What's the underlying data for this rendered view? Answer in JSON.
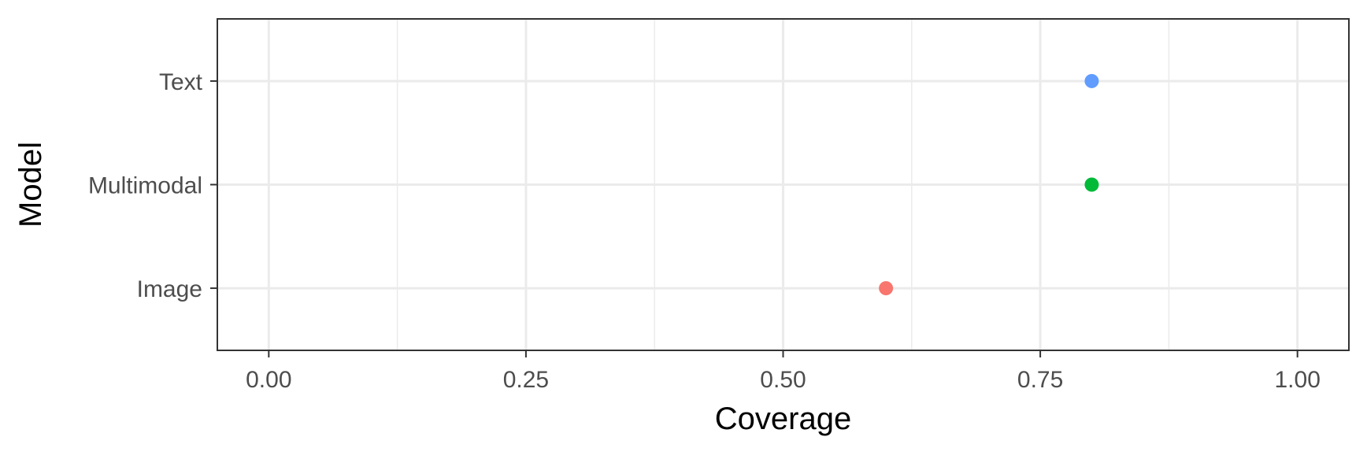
{
  "chart_data": {
    "type": "scatter",
    "title": "",
    "xlabel": "Coverage",
    "ylabel": "Model",
    "xlim": [
      -0.05,
      1.05
    ],
    "x_ticks": [
      "0.00",
      "0.25",
      "0.50",
      "0.75",
      "1.00"
    ],
    "x_tick_values": [
      0.0,
      0.25,
      0.5,
      0.75,
      1.0
    ],
    "categories": [
      "Image",
      "Multimodal",
      "Text"
    ],
    "points": [
      {
        "category": "Image",
        "x": 0.6,
        "color": "#F8766D"
      },
      {
        "category": "Multimodal",
        "x": 0.8,
        "color": "#00BA38"
      },
      {
        "category": "Text",
        "x": 0.8,
        "color": "#619CFF"
      }
    ],
    "grid": true,
    "legend": "none",
    "theme": "bw"
  }
}
